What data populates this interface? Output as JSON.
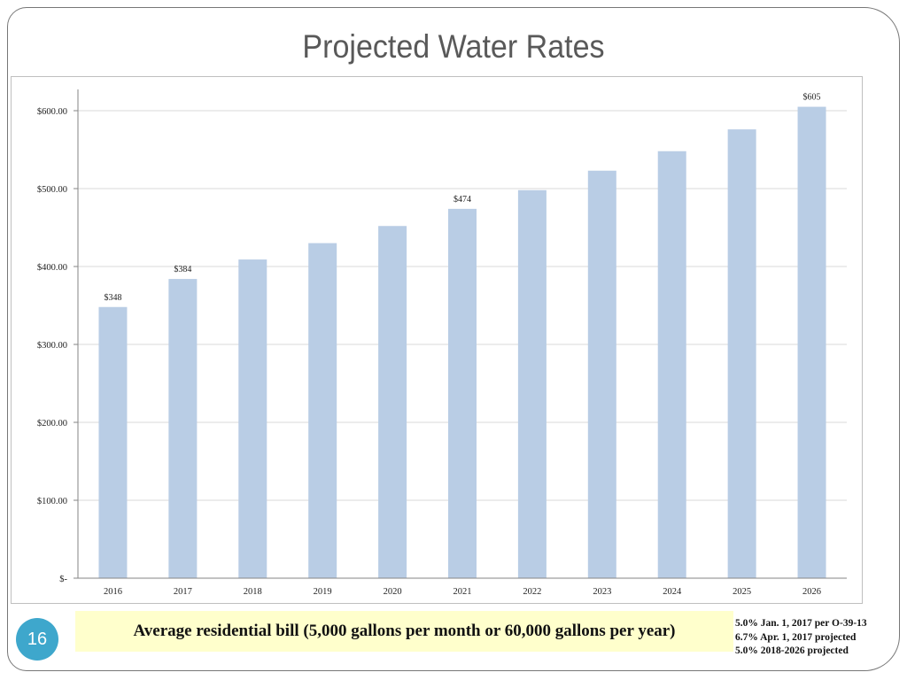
{
  "slide": {
    "title": "Projected Water Rates",
    "caption": "Average residential bill (5,000 gallons per month or 60,000 gallons per year)",
    "notes": [
      "5.0% Jan. 1, 2017 per O-39-13",
      "6.7% Apr. 1, 2017 projected",
      "5.0% 2018-2026 projected"
    ],
    "page_number": "16",
    "colors": {
      "bar": "#b9cde5",
      "page_badge": "#3ea7cc",
      "caption_bg": "#ffffcc",
      "title": "#595959"
    }
  },
  "chart_data": {
    "type": "bar",
    "title": "",
    "xlabel": "",
    "ylabel": "",
    "categories": [
      "2016",
      "2017",
      "2018",
      "2019",
      "2020",
      "2021",
      "2022",
      "2023",
      "2024",
      "2025",
      "2026"
    ],
    "values": [
      348,
      384,
      409,
      430,
      452,
      474,
      498,
      523,
      548,
      576,
      605
    ],
    "data_labels": {
      "0": "$348",
      "1": "$384",
      "5": "$474",
      "10": "$605"
    },
    "ylim": [
      0,
      600
    ],
    "yticks": [
      0,
      100,
      200,
      300,
      400,
      500,
      600
    ],
    "ytick_labels": [
      "$-",
      "$100.00",
      "$200.00",
      "$300.00",
      "$400.00",
      "$500.00",
      "$600.00"
    ],
    "grid": true,
    "legend": "none"
  }
}
